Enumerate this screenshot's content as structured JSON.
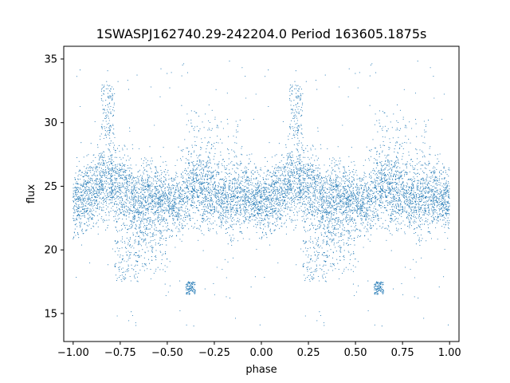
{
  "chart_data": {
    "type": "scatter",
    "title": "1SWASPJ162740.29-242204.0 Period 163605.1875s",
    "xlabel": "phase",
    "ylabel": "flux",
    "xlim": [
      -1.05,
      1.05
    ],
    "ylim": [
      12.8,
      36.0
    ],
    "x_ticks": [
      -1.0,
      -0.75,
      -0.5,
      -0.25,
      0.0,
      0.25,
      0.5,
      0.75,
      1.0
    ],
    "x_tick_labels": [
      "−1.00",
      "−0.75",
      "−0.50",
      "−0.25",
      "0.00",
      "0.25",
      "0.50",
      "0.75",
      "1.00"
    ],
    "y_ticks": [
      15,
      20,
      25,
      30,
      35
    ],
    "y_tick_labels": [
      "15",
      "20",
      "25",
      "30",
      "35"
    ],
    "grid": false,
    "legend": "none",
    "point_color": "#1f77b4",
    "phase_profile": {
      "phase": [
        0.0,
        0.05,
        0.1,
        0.15,
        0.2,
        0.25,
        0.3,
        0.35,
        0.4,
        0.45,
        0.5,
        0.55,
        0.6,
        0.65,
        0.7,
        0.75,
        0.8,
        0.85,
        0.9,
        0.95,
        1.0
      ],
      "typical_flux": [
        23.8,
        24.2,
        24.6,
        25.3,
        25.6,
        24.8,
        24.0,
        23.6,
        24.2,
        23.8,
        24.0,
        23.5,
        24.3,
        25.0,
        24.6,
        24.3,
        24.0,
        23.6,
        24.4,
        24.1,
        23.8
      ],
      "flux_spread": [
        1.3,
        1.4,
        1.6,
        1.6,
        1.7,
        1.8,
        1.7,
        1.6,
        1.6,
        1.5,
        1.4,
        1.4,
        1.4,
        1.5,
        1.6,
        1.5,
        1.5,
        1.6,
        1.4,
        1.4,
        1.3
      ]
    },
    "features": [
      {
        "phase_range": [
          0.15,
          0.22
        ],
        "flux_range": [
          29.0,
          33.0
        ],
        "note": "bright excursion"
      },
      {
        "phase_range": [
          0.22,
          0.35
        ],
        "flux_range": [
          17.5,
          21.0
        ],
        "note": "faint excursion"
      },
      {
        "phase_range": [
          0.35,
          0.5
        ],
        "flux_range": [
          18.0,
          22.0
        ],
        "note": "faint scatter"
      },
      {
        "phase_range": [
          0.6,
          0.9
        ],
        "flux_range": [
          26.0,
          31.0
        ],
        "note": "bright scatter"
      },
      {
        "phase_range": [
          0.6,
          0.65
        ],
        "flux_range": [
          16.5,
          17.5
        ],
        "note": "faint points"
      }
    ],
    "points_per_unit_phase": 9000
  }
}
